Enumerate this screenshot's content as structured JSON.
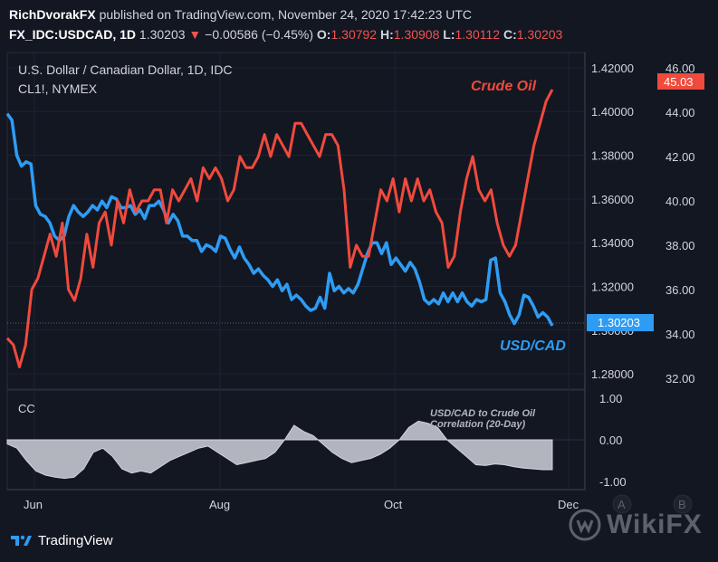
{
  "header": {
    "author": "RichDvorakFX",
    "published": "published on TradingView.com, November 24, 2020 17:42:23 UTC",
    "symbol": "FX_IDC:USDCAD, 1D",
    "last": "1.30203",
    "change_arrow": "▼",
    "change": "−0.00586 (−0.45%)",
    "o_label": "O:",
    "o": "1.30792",
    "h_label": "H:",
    "h": "1.30908",
    "l_label": "L:",
    "l": "1.30112",
    "c_label": "C:",
    "c": "1.30203"
  },
  "chart_data": [
    {
      "type": "line",
      "pane_title": "U.S. Dollar / Canadian Dollar, 1D, IDC",
      "pane_subtitle": "CL1!, NYMEX",
      "x_ticks": [
        "Jun",
        "Aug",
        "Oct",
        "Dec"
      ],
      "y_left_axis": {
        "ticks": [
          "1.42000",
          "1.40000",
          "1.38000",
          "1.36000",
          "1.34000",
          "1.32000",
          "1.30000",
          "1.28000"
        ],
        "range": [
          1.273,
          1.427
        ]
      },
      "y_right_axis": {
        "ticks": [
          "46.00",
          "44.00",
          "42.00",
          "40.00",
          "38.00",
          "36.00",
          "34.00",
          "32.00"
        ],
        "range": [
          31.5,
          46.7
        ]
      },
      "series": [
        {
          "name": "USD/CAD",
          "color": "#2e9cf4",
          "axis": "left",
          "last_label": "1.30203",
          "values": [
            1.399,
            1.396,
            1.38,
            1.375,
            1.377,
            1.376,
            1.357,
            1.353,
            1.352,
            1.349,
            1.343,
            1.341,
            1.343,
            1.352,
            1.357,
            1.354,
            1.352,
            1.354,
            1.357,
            1.355,
            1.359,
            1.356,
            1.361,
            1.36,
            1.356,
            1.356,
            1.357,
            1.353,
            1.355,
            1.351,
            1.357,
            1.357,
            1.359,
            1.355,
            1.349,
            1.353,
            1.35,
            1.343,
            1.343,
            1.341,
            1.341,
            1.336,
            1.339,
            1.338,
            1.336,
            1.343,
            1.342,
            1.337,
            1.333,
            1.338,
            1.333,
            1.33,
            1.326,
            1.328,
            1.325,
            1.323,
            1.32,
            1.323,
            1.318,
            1.321,
            1.314,
            1.316,
            1.314,
            1.311,
            1.309,
            1.31,
            1.315,
            1.31,
            1.326,
            1.318,
            1.32,
            1.317,
            1.319,
            1.317,
            1.321,
            1.328,
            1.335,
            1.34,
            1.34,
            1.335,
            1.34,
            1.33,
            1.333,
            1.33,
            1.327,
            1.331,
            1.328,
            1.322,
            1.314,
            1.312,
            1.314,
            1.312,
            1.317,
            1.313,
            1.317,
            1.313,
            1.317,
            1.313,
            1.311,
            1.314,
            1.313,
            1.314,
            1.332,
            1.333,
            1.317,
            1.313,
            1.307,
            1.303,
            1.307,
            1.316,
            1.315,
            1.311,
            1.306,
            1.308,
            1.306,
            1.302
          ],
          "x_start_day": 0,
          "x_step_days": 1.52
        },
        {
          "name": "Crude Oil",
          "color": "#f04a3c",
          "axis": "right",
          "last_label": "45.03",
          "values": [
            33.8,
            33.5,
            32.5,
            33.5,
            36.0,
            36.5,
            37.5,
            38.5,
            37.5,
            39.0,
            36.0,
            35.5,
            36.5,
            38.5,
            37.0,
            39.0,
            39.5,
            38.0,
            40.0,
            39.0,
            40.5,
            39.5,
            40.0,
            40.0,
            40.5,
            40.5,
            39.0,
            40.5,
            40.0,
            40.5,
            41.0,
            40.0,
            41.5,
            41.0,
            41.5,
            41.0,
            40.0,
            40.5,
            42.0,
            41.5,
            41.5,
            42.0,
            43.0,
            42.0,
            43.0,
            42.5,
            42.0,
            43.5,
            43.5,
            43.0,
            42.5,
            42.0,
            43.0,
            43.0,
            42.5,
            40.5,
            37.0,
            38.0,
            37.5,
            37.5,
            39.0,
            40.5,
            40.0,
            41.0,
            39.5,
            41.0,
            40.0,
            41.0,
            40.0,
            40.5,
            39.5,
            39.0,
            37.0,
            37.5,
            39.5,
            41.0,
            42.0,
            40.5,
            40.0,
            40.5,
            39.0,
            38.0,
            37.5,
            38.0,
            39.5,
            41.0,
            42.5,
            43.5,
            44.5,
            45.03
          ],
          "x_start_day": 0,
          "x_step_days": 1.97
        }
      ]
    },
    {
      "type": "area",
      "pane_title": "CC",
      "annotation": [
        "USD/CAD to Crude Oil",
        "Correlation (20-Day)"
      ],
      "y_axis": {
        "ticks": [
          "1.00",
          "0.00",
          "-1.00"
        ],
        "range": [
          -1.2,
          1.2
        ]
      },
      "series": [
        {
          "color": "#b2b5be",
          "values": [
            -0.1,
            -0.2,
            -0.5,
            -0.75,
            -0.85,
            -0.9,
            -0.93,
            -0.9,
            -0.7,
            -0.3,
            -0.2,
            -0.4,
            -0.7,
            -0.8,
            -0.75,
            -0.8,
            -0.65,
            -0.5,
            -0.4,
            -0.3,
            -0.2,
            -0.15,
            -0.3,
            -0.45,
            -0.6,
            -0.55,
            -0.5,
            -0.45,
            -0.3,
            0.0,
            0.35,
            0.2,
            0.1,
            -0.1,
            -0.3,
            -0.45,
            -0.55,
            -0.5,
            -0.45,
            -0.35,
            -0.2,
            0.0,
            0.3,
            0.45,
            0.4,
            0.3,
            0.0,
            -0.2,
            -0.4,
            -0.6,
            -0.62,
            -0.58,
            -0.6,
            -0.65,
            -0.68,
            -0.7,
            -0.72,
            -0.72
          ]
        }
      ]
    }
  ],
  "footer": {
    "brand": "TradingView"
  },
  "watermark": {
    "text": "WikiFX"
  },
  "scale_buttons": [
    "A",
    "B"
  ]
}
